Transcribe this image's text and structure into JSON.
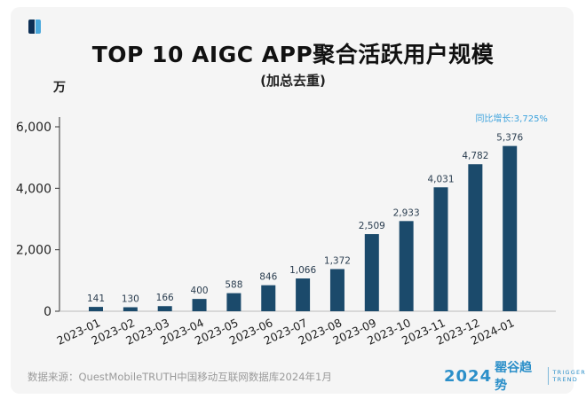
{
  "chart_data": {
    "type": "bar",
    "title": "TOP 10 AIGC APP聚合活跃用户规模",
    "subtitle": "(加总去重)",
    "ylabel": "万",
    "categories": [
      "2023-01",
      "2023-02",
      "2023-03",
      "2023-04",
      "2023-05",
      "2023-06",
      "2023-07",
      "2023-08",
      "2023-09",
      "2023-10",
      "2023-11",
      "2023-12",
      "2024-01"
    ],
    "values": [
      141,
      130,
      166,
      400,
      588,
      846,
      1066,
      1372,
      2509,
      2933,
      4031,
      4782,
      5376
    ],
    "value_labels": [
      "141",
      "130",
      "166",
      "400",
      "588",
      "846",
      "1,066",
      "1,372",
      "2,509",
      "2,933",
      "4,031",
      "4,782",
      "5,376"
    ],
    "yticks": [
      0,
      2000,
      4000,
      6000
    ],
    "ytick_labels": [
      "0",
      "2,000",
      "4,000",
      "6,000"
    ],
    "ylim": [
      0,
      6500
    ],
    "annotation": "同比增长:3,725%",
    "bar_color": "#1b4a6b",
    "annotation_color": "#3ea3dd",
    "grid": false
  },
  "footer": {
    "source": "数据来源：QuestMobileTRUTH中国移动互联网数据库2024年1月",
    "brand_year": "2024",
    "brand_name": "罂谷趋势",
    "brand_tag_1": "TRIGGER",
    "brand_tag_2": "TREND"
  }
}
